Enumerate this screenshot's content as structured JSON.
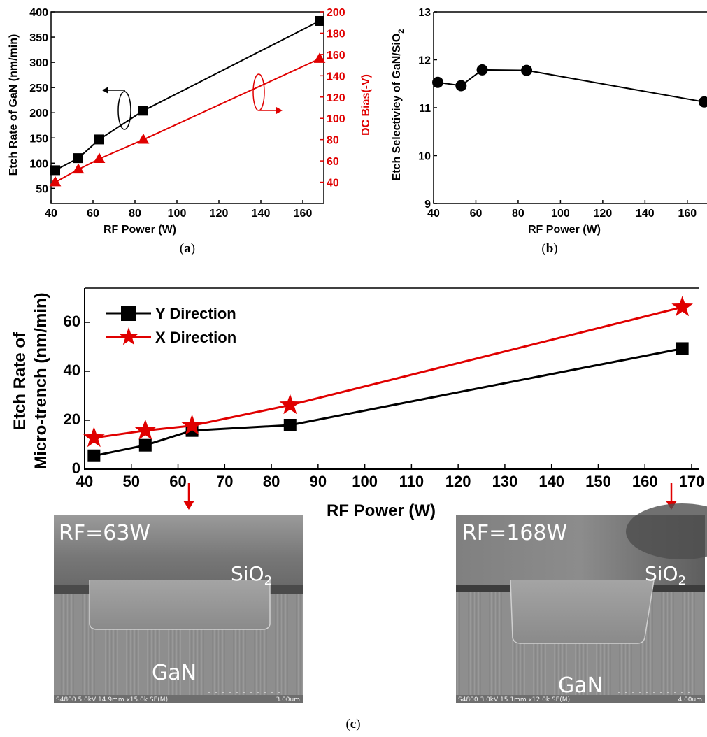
{
  "chart_data": [
    {
      "panel": "a",
      "type": "line",
      "caption": "a",
      "x": [
        42,
        53,
        63,
        84,
        168
      ],
      "xlabel": "RF Power (W)",
      "xlim": [
        40,
        170
      ],
      "xticks": [
        40,
        60,
        80,
        100,
        120,
        140,
        160
      ],
      "series": [
        {
          "axis": "left",
          "marker": "square",
          "color": "#000000",
          "values": [
            86,
            110,
            147,
            204,
            382
          ]
        },
        {
          "axis": "right",
          "marker": "triangle",
          "color": "#e00000",
          "values": [
            40,
            52,
            62,
            80,
            156
          ]
        }
      ],
      "ylabel_left": "Etch Rate of GaN (nm/min)",
      "ylim_left": [
        20,
        400
      ],
      "yticks_left": [
        50,
        100,
        150,
        200,
        250,
        300,
        350,
        400
      ],
      "ylabel_right": "DC Bias(-V)",
      "ylim_right": [
        20,
        200
      ],
      "yticks_right": [
        40,
        60,
        80,
        100,
        120,
        140,
        160,
        180,
        200
      ]
    },
    {
      "panel": "b",
      "type": "line",
      "caption": "b",
      "x": [
        42,
        53,
        63,
        84,
        168
      ],
      "xlabel": "RF Power (W)",
      "xlim": [
        40,
        168
      ],
      "xticks": [
        40,
        60,
        80,
        100,
        120,
        140,
        160
      ],
      "series": [
        {
          "marker": "circle",
          "color": "#000000",
          "values": [
            11.53,
            11.46,
            11.79,
            11.78,
            11.12
          ]
        }
      ],
      "ylabel_main": "Etch Selectiviey of GaN/SiO",
      "ylabel_sub": "2",
      "ylim": [
        9,
        13
      ],
      "yticks": [
        9,
        10,
        11,
        12,
        13
      ]
    },
    {
      "panel": "c",
      "type": "line",
      "caption": "c",
      "x": [
        42,
        53,
        63,
        84,
        168
      ],
      "xlabel": "RF Power (W)",
      "xlim": [
        40,
        170
      ],
      "xticks": [
        40,
        50,
        60,
        70,
        80,
        90,
        100,
        110,
        120,
        130,
        140,
        150,
        160,
        170
      ],
      "ylabel_line1": "Etch Rate of",
      "ylabel_line2": "Micro-trench (nm/min)",
      "ylim": [
        0,
        74
      ],
      "yticks": [
        0,
        20,
        40,
        60
      ],
      "series": [
        {
          "name": "Y Direction",
          "marker": "square",
          "color": "#000000",
          "values": [
            5.5,
            9.8,
            15.8,
            18.0,
            49.3
          ]
        },
        {
          "name": "X Direction",
          "marker": "star",
          "color": "#e00000",
          "values": [
            12.8,
            15.8,
            17.8,
            26.2,
            66.2
          ]
        }
      ]
    }
  ],
  "sem_images": [
    {
      "label": "RF=63W",
      "layer_top_main": "SiO",
      "layer_top_sub": "2",
      "layer_bottom": "GaN",
      "footer_left": "S4800 5.0kV 14.9mm x15.0k SE(M)",
      "footer_right": "3.00um"
    },
    {
      "label": "RF=168W",
      "layer_top_main": "SiO",
      "layer_top_sub": "2",
      "layer_bottom": "GaN",
      "footer_left": "S4800 3.0kV 15.1mm x12.0k SE(M)",
      "footer_right": "4.00um"
    }
  ],
  "colors": {
    "red": "#e00000",
    "black": "#000000"
  }
}
